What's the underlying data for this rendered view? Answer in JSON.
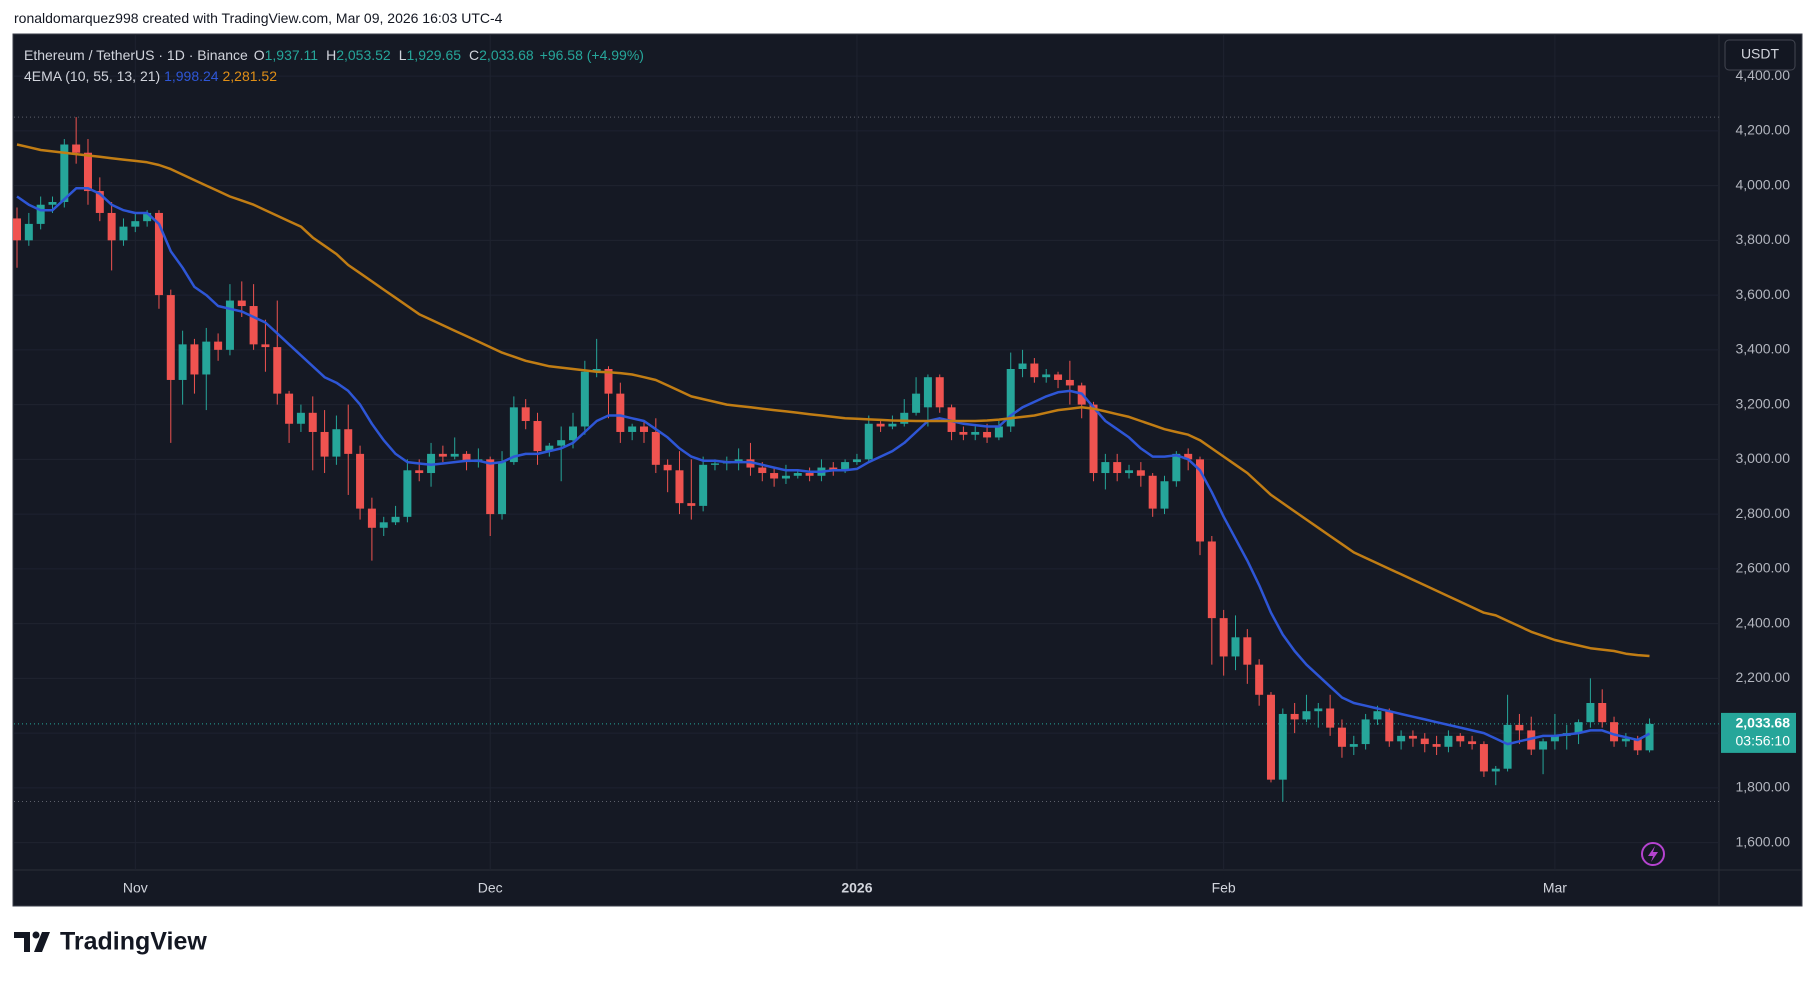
{
  "header": {
    "attribution": "ronaldomarquez998 created with TradingView.com, Mar 09, 2026 16:03 UTC-4"
  },
  "chart_data": {
    "type": "candlestick",
    "title": "Ethereum / TetherUS · 1D · Binance",
    "ohlc_legend": [
      {
        "key": "O",
        "value": "1,937.11"
      },
      {
        "key": "H",
        "value": "2,053.52"
      },
      {
        "key": "L",
        "value": "1,929.65"
      },
      {
        "key": "C",
        "value": "2,033.68"
      }
    ],
    "change_label": "+96.58 (+4.99%)",
    "indicator": {
      "name": "4EMA (10, 55, 13, 21)",
      "value_labels": [
        "1,998.24",
        "2,281.52"
      ]
    },
    "categories": [
      null,
      null,
      null,
      null,
      null,
      null,
      null,
      null,
      null,
      null,
      "Nov",
      null,
      null,
      null,
      null,
      null,
      null,
      null,
      null,
      null,
      null,
      null,
      null,
      null,
      null,
      null,
      null,
      null,
      null,
      null,
      null,
      null,
      null,
      null,
      null,
      null,
      null,
      null,
      null,
      null,
      "Dec",
      null,
      null,
      null,
      null,
      null,
      null,
      null,
      null,
      null,
      null,
      null,
      null,
      null,
      null,
      null,
      null,
      null,
      null,
      null,
      null,
      null,
      null,
      null,
      null,
      null,
      null,
      null,
      null,
      null,
      null,
      "2026",
      null,
      null,
      null,
      null,
      null,
      null,
      null,
      null,
      null,
      null,
      null,
      null,
      null,
      null,
      null,
      null,
      null,
      null,
      null,
      null,
      null,
      null,
      null,
      null,
      null,
      null,
      null,
      null,
      null,
      null,
      "Feb",
      null,
      null,
      null,
      null,
      null,
      null,
      null,
      null,
      null,
      null,
      null,
      null,
      null,
      null,
      null,
      null,
      null,
      null,
      null,
      null,
      null,
      null,
      null,
      null,
      null,
      null,
      null,
      "Mar",
      null,
      null,
      null,
      null,
      null,
      null,
      null,
      null
    ],
    "open": [
      3880,
      3800,
      3860,
      3930,
      3940,
      4150,
      4120,
      3980,
      3900,
      3800,
      3850,
      3870,
      3900,
      3600,
      3290,
      3420,
      3310,
      3430,
      3400,
      3580,
      3560,
      3420,
      3410,
      3240,
      3130,
      3170,
      3100,
      3010,
      3110,
      3020,
      2820,
      2750,
      2770,
      2790,
      2960,
      2950,
      3020,
      3010,
      3020,
      2990,
      3000,
      2800,
      2990,
      3190,
      3140,
      3030,
      3050,
      3070,
      3120,
      3320,
      3330,
      3240,
      3100,
      3120,
      3100,
      2980,
      2960,
      2840,
      2830,
      2980,
      2985,
      2990,
      3000,
      2970,
      2950,
      2930,
      2940,
      2950,
      2940,
      2970,
      2960,
      2990,
      3000,
      3130,
      3120,
      3130,
      3170,
      3190,
      3300,
      3190,
      3100,
      3090,
      3100,
      3080,
      3120,
      3330,
      3350,
      3300,
      3310,
      3290,
      3270,
      3200,
      2950,
      2990,
      2950,
      2960,
      2940,
      2820,
      2920,
      3020,
      3000,
      2700,
      2420,
      2280,
      2350,
      2250,
      2140,
      1830,
      2070,
      2050,
      2080,
      2090,
      2020,
      1950,
      1960,
      2050,
      2080,
      1970,
      1990,
      1980,
      1960,
      1950,
      1990,
      1970,
      1960,
      1860,
      1870,
      2030,
      2010,
      1940,
      1970,
      1990,
      2000,
      2040,
      2110,
      2040,
      1970,
      1980,
      1937.11
    ],
    "high": [
      3920,
      3900,
      3960,
      3960,
      4170,
      4250,
      4170,
      4030,
      3940,
      3880,
      3900,
      3910,
      3910,
      3620,
      3470,
      3440,
      3480,
      3460,
      3640,
      3650,
      3640,
      3510,
      3580,
      3250,
      3200,
      3230,
      3180,
      3160,
      3200,
      3050,
      2860,
      2790,
      2830,
      3000,
      3000,
      3060,
      3050,
      3080,
      3030,
      3040,
      3010,
      3030,
      3230,
      3220,
      3170,
      3060,
      3120,
      3170,
      3360,
      3440,
      3340,
      3280,
      3130,
      3140,
      3150,
      3000,
      3030,
      3000,
      3010,
      3000,
      3010,
      3040,
      3060,
      2990,
      2970,
      2980,
      2960,
      2970,
      3000,
      2990,
      3000,
      3020,
      3160,
      3140,
      3160,
      3220,
      3300,
      3310,
      3310,
      3200,
      3120,
      3120,
      3130,
      3140,
      3390,
      3400,
      3370,
      3330,
      3320,
      3360,
      3280,
      3210,
      3020,
      3020,
      2980,
      2990,
      2950,
      2940,
      3030,
      3040,
      3010,
      2720,
      2450,
      2430,
      2380,
      2270,
      2150,
      2090,
      2110,
      2140,
      2110,
      2140,
      2050,
      1990,
      2070,
      2100,
      2090,
      2010,
      2010,
      2000,
      1990,
      2010,
      2000,
      1990,
      1970,
      1880,
      2140,
      2070,
      2060,
      1980,
      2070,
      2030,
      2050,
      2200,
      2160,
      2060,
      2000,
      1990,
      2053.52
    ],
    "low": [
      3700,
      3780,
      3840,
      3900,
      3920,
      4080,
      3930,
      3870,
      3690,
      3780,
      3830,
      3850,
      3550,
      3060,
      3200,
      3240,
      3180,
      3360,
      3380,
      3520,
      3400,
      3320,
      3200,
      3060,
      3100,
      2960,
      2950,
      2980,
      2870,
      2780,
      2630,
      2720,
      2760,
      2770,
      2920,
      2900,
      2990,
      3000,
      2960,
      2970,
      2720,
      2780,
      2980,
      3110,
      2980,
      3010,
      2920,
      3040,
      3090,
      3300,
      3150,
      3060,
      3070,
      3060,
      2950,
      2880,
      2800,
      2780,
      2810,
      2960,
      2960,
      2960,
      2940,
      2920,
      2900,
      2910,
      2930,
      2920,
      2920,
      2940,
      2950,
      2980,
      2990,
      3100,
      3110,
      3120,
      3160,
      3120,
      3170,
      3070,
      3070,
      3070,
      3060,
      3070,
      3100,
      3300,
      3280,
      3280,
      3260,
      3200,
      3150,
      2920,
      2890,
      2920,
      2930,
      2900,
      2790,
      2800,
      2900,
      2960,
      2650,
      2250,
      2210,
      2230,
      2180,
      2100,
      1820,
      1750,
      2000,
      2040,
      2020,
      1990,
      1910,
      1920,
      1940,
      2030,
      1950,
      1940,
      1950,
      1930,
      1920,
      1930,
      1950,
      1940,
      1840,
      1810,
      1860,
      1960,
      1920,
      1850,
      1940,
      1940,
      1960,
      2020,
      2020,
      1950,
      1950,
      1920,
      1929.65
    ],
    "close": [
      3800,
      3860,
      3930,
      3940,
      4150,
      4120,
      3980,
      3900,
      3800,
      3850,
      3870,
      3900,
      3600,
      3290,
      3420,
      3310,
      3430,
      3400,
      3580,
      3560,
      3420,
      3410,
      3240,
      3130,
      3170,
      3100,
      3010,
      3110,
      3020,
      2820,
      2750,
      2770,
      2790,
      2960,
      2950,
      3020,
      3010,
      3020,
      2990,
      3000,
      2800,
      2990,
      3190,
      3140,
      3030,
      3050,
      3070,
      3120,
      3320,
      3330,
      3240,
      3100,
      3120,
      3100,
      2980,
      2960,
      2840,
      2830,
      2980,
      2985,
      2990,
      3000,
      2970,
      2950,
      2930,
      2940,
      2950,
      2940,
      2970,
      2960,
      2990,
      3000,
      3130,
      3120,
      3130,
      3170,
      3240,
      3300,
      3190,
      3100,
      3090,
      3100,
      3080,
      3120,
      3330,
      3350,
      3300,
      3310,
      3290,
      3270,
      3200,
      2950,
      2990,
      2950,
      2960,
      2940,
      2820,
      2920,
      3020,
      3000,
      2700,
      2420,
      2280,
      2350,
      2250,
      2140,
      1830,
      2070,
      2050,
      2080,
      2090,
      2020,
      1950,
      1960,
      2050,
      2080,
      1970,
      1990,
      1980,
      1960,
      1950,
      1990,
      1970,
      1960,
      1860,
      1870,
      2030,
      2010,
      1940,
      1970,
      1990,
      2000,
      2040,
      2110,
      2040,
      1970,
      1980,
      1937.11,
      2033.68
    ],
    "up_color": "#26a69a",
    "down_color": "#ef5350",
    "series": [
      {
        "color": "#2e56d6",
        "values": [
          3960,
          3930,
          3910,
          3910,
          3950,
          3990,
          3990,
          3970,
          3930,
          3910,
          3900,
          3900,
          3860,
          3760,
          3700,
          3630,
          3600,
          3560,
          3550,
          3540,
          3520,
          3500,
          3460,
          3420,
          3380,
          3340,
          3300,
          3280,
          3250,
          3200,
          3130,
          3070,
          3020,
          2990,
          2985,
          2980,
          2985,
          2990,
          2995,
          2995,
          2985,
          2990,
          3010,
          3020,
          3020,
          3030,
          3040,
          3060,
          3100,
          3140,
          3160,
          3160,
          3150,
          3140,
          3110,
          3080,
          3040,
          3010,
          2995,
          2995,
          2990,
          2990,
          2990,
          2980,
          2970,
          2960,
          2960,
          2955,
          2955,
          2960,
          2960,
          2965,
          2990,
          3010,
          3030,
          3060,
          3100,
          3140,
          3150,
          3140,
          3130,
          3125,
          3120,
          3120,
          3160,
          3190,
          3210,
          3230,
          3245,
          3250,
          3240,
          3190,
          3140,
          3110,
          3080,
          3040,
          3010,
          3010,
          3015,
          3000,
          2960,
          2880,
          2790,
          2710,
          2630,
          2540,
          2440,
          2360,
          2300,
          2250,
          2210,
          2170,
          2130,
          2110,
          2100,
          2090,
          2080,
          2070,
          2060,
          2050,
          2040,
          2030,
          2020,
          2010,
          2000,
          1980,
          1960,
          1970,
          1980,
          1990,
          1990,
          1995,
          2000,
          2010,
          2010,
          1995,
          1985,
          1975,
          1998.24
        ]
      },
      {
        "color": "#c17d14",
        "values": [
          4150,
          4140,
          4130,
          4125,
          4120,
          4115,
          4110,
          4105,
          4100,
          4095,
          4090,
          4085,
          4075,
          4060,
          4040,
          4020,
          4000,
          3980,
          3960,
          3945,
          3930,
          3910,
          3890,
          3870,
          3850,
          3810,
          3780,
          3750,
          3710,
          3680,
          3650,
          3620,
          3590,
          3560,
          3530,
          3510,
          3490,
          3470,
          3450,
          3430,
          3410,
          3390,
          3375,
          3360,
          3350,
          3340,
          3335,
          3330,
          3325,
          3320,
          3318,
          3315,
          3310,
          3300,
          3290,
          3270,
          3250,
          3230,
          3220,
          3210,
          3200,
          3195,
          3190,
          3185,
          3180,
          3175,
          3170,
          3165,
          3160,
          3155,
          3150,
          3148,
          3146,
          3144,
          3142,
          3141,
          3140,
          3140,
          3140,
          3140,
          3140,
          3140,
          3142,
          3145,
          3150,
          3155,
          3160,
          3170,
          3180,
          3185,
          3190,
          3185,
          3175,
          3165,
          3155,
          3140,
          3125,
          3110,
          3100,
          3090,
          3070,
          3040,
          3010,
          2980,
          2950,
          2910,
          2870,
          2840,
          2810,
          2780,
          2750,
          2720,
          2690,
          2660,
          2640,
          2620,
          2600,
          2580,
          2560,
          2540,
          2520,
          2500,
          2480,
          2460,
          2440,
          2430,
          2410,
          2390,
          2370,
          2355,
          2340,
          2330,
          2320,
          2310,
          2305,
          2300,
          2290,
          2285,
          2281.52
        ]
      }
    ],
    "ylim": [
      1500,
      4550
    ],
    "yticks": [
      {
        "value": 1600,
        "label": "1,600.00"
      },
      {
        "value": 1800,
        "label": "1,800.00"
      },
      {
        "value": 2000,
        "label": "2,000.00"
      },
      {
        "value": 2200,
        "label": "2,200.00"
      },
      {
        "value": 2400,
        "label": "2,400.00"
      },
      {
        "value": 2600,
        "label": "2,600.00"
      },
      {
        "value": 2800,
        "label": "2,800.00"
      },
      {
        "value": 3000,
        "label": "3,000.00"
      },
      {
        "value": 3200,
        "label": "3,200.00"
      },
      {
        "value": 3400,
        "label": "3,400.00"
      },
      {
        "value": 3600,
        "label": "3,600.00"
      },
      {
        "value": 3800,
        "label": "3,800.00"
      },
      {
        "value": 4000,
        "label": "4,000.00"
      },
      {
        "value": 4200,
        "label": "4,200.00"
      },
      {
        "value": 4400,
        "label": "4,400.00"
      }
    ],
    "currency": "USDT",
    "price_tag": {
      "label": "2,033.68",
      "countdown": "03:56:10"
    },
    "grid": true
  },
  "footer": {
    "brand": "TradingView"
  }
}
